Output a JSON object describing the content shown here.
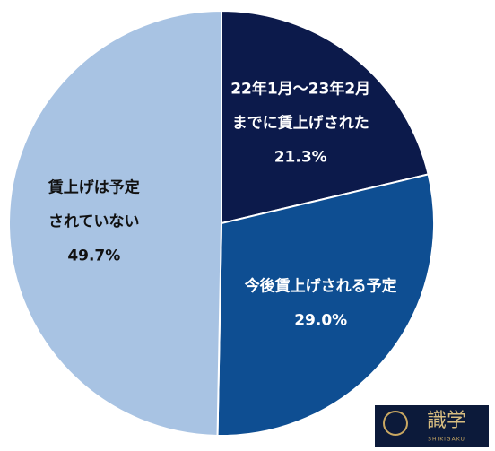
{
  "chart_data": {
    "type": "pie",
    "categories": [
      [
        "22年1月～23年2月",
        "までに賃上げされた"
      ],
      [
        "今後賃上げされる予定"
      ],
      [
        "賃上げは予定",
        "されていない"
      ]
    ],
    "values": [
      21.3,
      29.0,
      49.7
    ],
    "value_labels": [
      "21.3%",
      "29.0%",
      "49.7%"
    ],
    "colors": [
      "#0c1a4b",
      "#0e4e92",
      "#a8c3e3"
    ]
  },
  "logo": {
    "text": "識学",
    "subtext": "SHIKIGAKU"
  }
}
